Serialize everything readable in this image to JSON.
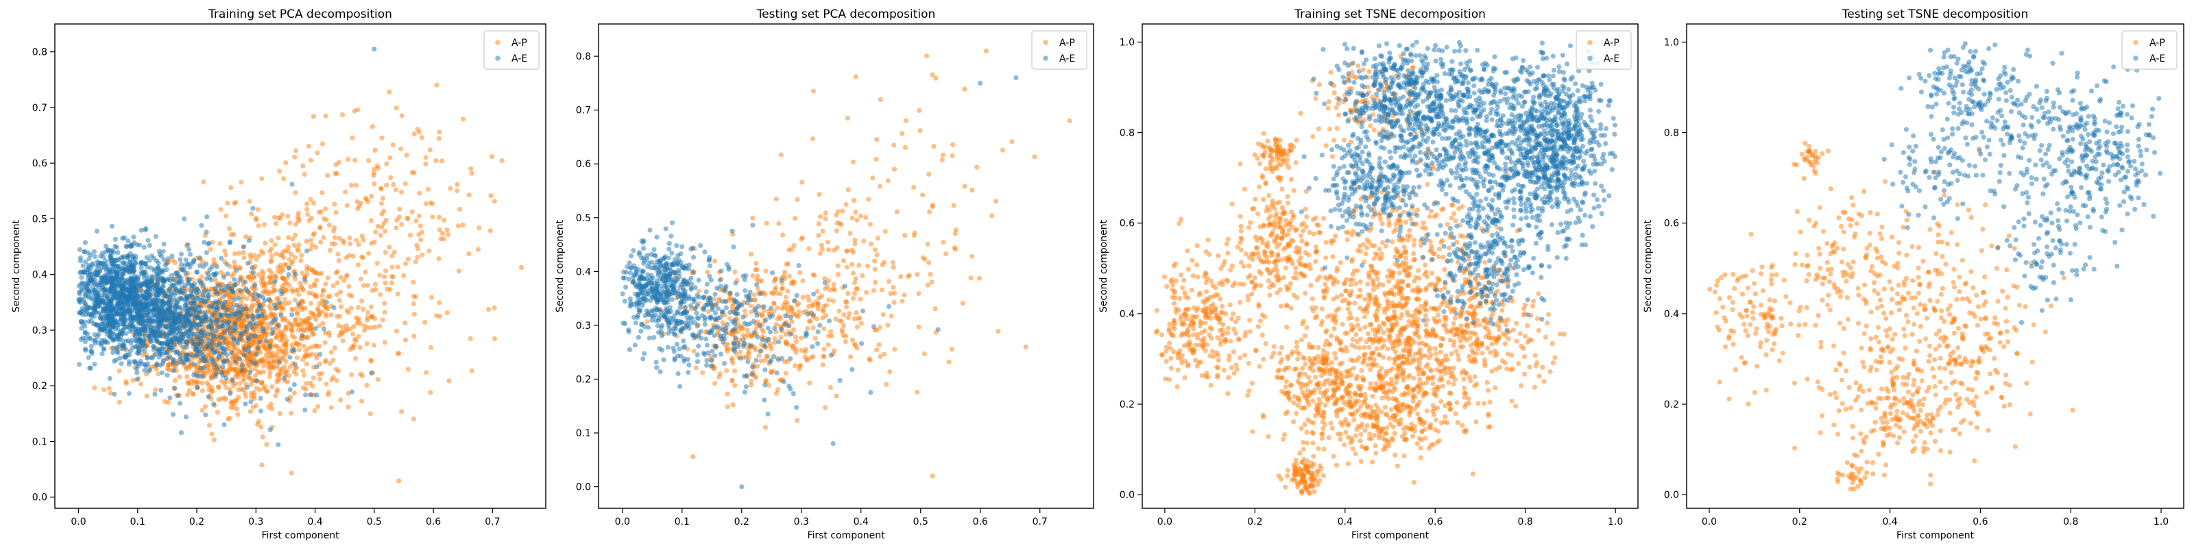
{
  "figure": {
    "colors": {
      "A-P": "#ff7f0e",
      "A-E": "#1f77b4"
    },
    "marker_alpha": 0.5
  },
  "chart_data": [
    {
      "type": "scatter",
      "title": "Training set PCA decomposition",
      "xlabel": "First component",
      "ylabel": "Second component",
      "xlim": [
        -0.04,
        0.79
      ],
      "ylim": [
        -0.02,
        0.85
      ],
      "xticks": [
        0.0,
        0.1,
        0.2,
        0.3,
        0.4,
        0.5,
        0.6,
        0.7
      ],
      "yticks": [
        0.0,
        0.1,
        0.2,
        0.3,
        0.4,
        0.5,
        0.6,
        0.7,
        0.8
      ],
      "tick_decimals": 1,
      "grid": false,
      "legend": {
        "position": "upper-right",
        "entries": [
          "A-P",
          "A-E"
        ]
      },
      "series": [
        {
          "name": "A-P",
          "color": "#ff7f0e",
          "n": 1800,
          "seed": 11,
          "clusters": [
            {
              "w": 0.55,
              "cx": 0.25,
              "cy": 0.29,
              "sx": 0.07,
              "sy": 0.06
            },
            {
              "w": 0.3,
              "cx": 0.36,
              "cy": 0.34,
              "sx": 0.09,
              "sy": 0.1
            },
            {
              "w": 0.15,
              "cx": 0.5,
              "cy": 0.48,
              "sx": 0.1,
              "sy": 0.13
            }
          ],
          "bounds": {
            "x": [
              0.0,
              0.75
            ],
            "y": [
              0.02,
              0.78
            ]
          }
        },
        {
          "name": "A-E",
          "color": "#1f77b4",
          "n": 2000,
          "seed": 23,
          "clusters": [
            {
              "w": 0.5,
              "cx": 0.07,
              "cy": 0.36,
              "sx": 0.045,
              "sy": 0.045
            },
            {
              "w": 0.4,
              "cx": 0.15,
              "cy": 0.32,
              "sx": 0.06,
              "sy": 0.05
            },
            {
              "w": 0.1,
              "cx": 0.26,
              "cy": 0.3,
              "sx": 0.08,
              "sy": 0.08
            }
          ],
          "bounds": {
            "x": [
              0.0,
              0.5
            ],
            "y": [
              0.08,
              0.81
            ]
          },
          "extra_points": [
            [
              0.5,
              0.805
            ]
          ]
        }
      ]
    },
    {
      "type": "scatter",
      "title": "Testing set PCA decomposition",
      "xlabel": "First component",
      "ylabel": "Second component",
      "xlim": [
        -0.04,
        0.79
      ],
      "ylim": [
        -0.04,
        0.86
      ],
      "xticks": [
        0.0,
        0.1,
        0.2,
        0.3,
        0.4,
        0.5,
        0.6,
        0.7
      ],
      "yticks": [
        0.0,
        0.1,
        0.2,
        0.3,
        0.4,
        0.5,
        0.6,
        0.7,
        0.8
      ],
      "tick_decimals": 1,
      "grid": false,
      "legend": {
        "position": "upper-right",
        "entries": [
          "A-P",
          "A-E"
        ]
      },
      "series": [
        {
          "name": "A-P",
          "color": "#ff7f0e",
          "n": 600,
          "seed": 31,
          "clusters": [
            {
              "w": 0.55,
              "cx": 0.23,
              "cy": 0.3,
              "sx": 0.07,
              "sy": 0.06
            },
            {
              "w": 0.3,
              "cx": 0.34,
              "cy": 0.36,
              "sx": 0.09,
              "sy": 0.1
            },
            {
              "w": 0.15,
              "cx": 0.48,
              "cy": 0.48,
              "sx": 0.1,
              "sy": 0.12
            }
          ],
          "bounds": {
            "x": [
              0.02,
              0.75
            ],
            "y": [
              0.02,
              0.82
            ]
          },
          "extra_points": [
            [
              0.61,
              0.81
            ],
            [
              0.75,
              0.68
            ],
            [
              0.52,
              0.02
            ]
          ]
        },
        {
          "name": "A-E",
          "color": "#1f77b4",
          "n": 700,
          "seed": 47,
          "clusters": [
            {
              "w": 0.55,
              "cx": 0.06,
              "cy": 0.37,
              "sx": 0.04,
              "sy": 0.04
            },
            {
              "w": 0.35,
              "cx": 0.14,
              "cy": 0.31,
              "sx": 0.06,
              "sy": 0.05
            },
            {
              "w": 0.1,
              "cx": 0.25,
              "cy": 0.28,
              "sx": 0.08,
              "sy": 0.08
            }
          ],
          "bounds": {
            "x": [
              0.0,
              0.67
            ],
            "y": [
              0.0,
              0.77
            ]
          },
          "extra_points": [
            [
              0.2,
              0.0
            ],
            [
              0.66,
              0.76
            ],
            [
              0.6,
              0.75
            ]
          ]
        }
      ]
    },
    {
      "type": "scatter",
      "title": "Training set TSNE decomposition",
      "xlabel": "First component",
      "ylabel": "Second component",
      "xlim": [
        -0.05,
        1.05
      ],
      "ylim": [
        -0.03,
        1.04
      ],
      "xticks": [
        0.0,
        0.2,
        0.4,
        0.6,
        0.8,
        1.0
      ],
      "yticks": [
        0.0,
        0.2,
        0.4,
        0.6,
        0.8,
        1.0
      ],
      "tick_decimals": 1,
      "grid": false,
      "legend": {
        "position": "upper-right",
        "entries": [
          "A-P",
          "A-E"
        ]
      },
      "series": [
        {
          "name": "A-P",
          "color": "#ff7f0e",
          "n": 2400,
          "seed": 59,
          "clusters": [
            {
              "w": 0.36,
              "cx": 0.52,
              "cy": 0.4,
              "sx": 0.1,
              "sy": 0.13
            },
            {
              "w": 0.14,
              "cx": 0.08,
              "cy": 0.38,
              "sx": 0.06,
              "sy": 0.08
            },
            {
              "w": 0.14,
              "cx": 0.48,
              "cy": 0.2,
              "sx": 0.09,
              "sy": 0.06
            },
            {
              "w": 0.1,
              "cx": 0.25,
              "cy": 0.55,
              "sx": 0.05,
              "sy": 0.07
            },
            {
              "w": 0.07,
              "cx": 0.32,
              "cy": 0.25,
              "sx": 0.05,
              "sy": 0.05
            },
            {
              "w": 0.04,
              "cx": 0.31,
              "cy": 0.04,
              "sx": 0.02,
              "sy": 0.02
            },
            {
              "w": 0.03,
              "cx": 0.25,
              "cy": 0.75,
              "sx": 0.02,
              "sy": 0.02
            },
            {
              "w": 0.08,
              "cx": 0.72,
              "cy": 0.35,
              "sx": 0.07,
              "sy": 0.07
            },
            {
              "w": 0.04,
              "cx": 0.45,
              "cy": 0.88,
              "sx": 0.06,
              "sy": 0.06
            }
          ],
          "bounds": {
            "x": [
              -0.02,
              0.93
            ],
            "y": [
              0.0,
              0.97
            ]
          }
        },
        {
          "name": "A-E",
          "color": "#1f77b4",
          "n": 2300,
          "seed": 71,
          "clusters": [
            {
              "w": 0.38,
              "cx": 0.72,
              "cy": 0.8,
              "sx": 0.13,
              "sy": 0.09
            },
            {
              "w": 0.22,
              "cx": 0.87,
              "cy": 0.76,
              "sx": 0.06,
              "sy": 0.09
            },
            {
              "w": 0.17,
              "cx": 0.53,
              "cy": 0.88,
              "sx": 0.07,
              "sy": 0.06
            },
            {
              "w": 0.13,
              "cx": 0.72,
              "cy": 0.52,
              "sx": 0.06,
              "sy": 0.07
            },
            {
              "w": 0.1,
              "cx": 0.45,
              "cy": 0.68,
              "sx": 0.05,
              "sy": 0.06
            }
          ],
          "bounds": {
            "x": [
              0.3,
              1.0
            ],
            "y": [
              0.35,
              1.0
            ]
          }
        }
      ]
    },
    {
      "type": "scatter",
      "title": "Testing set TSNE decomposition",
      "xlabel": "First component",
      "ylabel": "Second component",
      "xlim": [
        -0.05,
        1.05
      ],
      "ylim": [
        -0.03,
        1.04
      ],
      "xticks": [
        0.0,
        0.2,
        0.4,
        0.6,
        0.8,
        1.0
      ],
      "yticks": [
        0.0,
        0.2,
        0.4,
        0.6,
        0.8,
        1.0
      ],
      "tick_decimals": 1,
      "grid": false,
      "legend": {
        "position": "upper-right",
        "entries": [
          "A-P",
          "A-E"
        ]
      },
      "series": [
        {
          "name": "A-P",
          "color": "#ff7f0e",
          "n": 800,
          "seed": 83,
          "clusters": [
            {
              "w": 0.4,
              "cx": 0.45,
              "cy": 0.4,
              "sx": 0.11,
              "sy": 0.13
            },
            {
              "w": 0.15,
              "cx": 0.1,
              "cy": 0.4,
              "sx": 0.06,
              "sy": 0.07
            },
            {
              "w": 0.2,
              "cx": 0.45,
              "cy": 0.18,
              "sx": 0.09,
              "sy": 0.06
            },
            {
              "w": 0.1,
              "cx": 0.3,
              "cy": 0.55,
              "sx": 0.06,
              "sy": 0.06
            },
            {
              "w": 0.08,
              "cx": 0.62,
              "cy": 0.35,
              "sx": 0.06,
              "sy": 0.06
            },
            {
              "w": 0.04,
              "cx": 0.32,
              "cy": 0.04,
              "sx": 0.02,
              "sy": 0.02
            },
            {
              "w": 0.03,
              "cx": 0.23,
              "cy": 0.74,
              "sx": 0.02,
              "sy": 0.02
            }
          ],
          "bounds": {
            "x": [
              0.0,
              0.93
            ],
            "y": [
              0.0,
              0.93
            ]
          }
        },
        {
          "name": "A-E",
          "color": "#1f77b4",
          "n": 700,
          "seed": 97,
          "clusters": [
            {
              "w": 0.38,
              "cx": 0.72,
              "cy": 0.8,
              "sx": 0.13,
              "sy": 0.09
            },
            {
              "w": 0.22,
              "cx": 0.88,
              "cy": 0.76,
              "sx": 0.06,
              "sy": 0.07
            },
            {
              "w": 0.17,
              "cx": 0.57,
              "cy": 0.9,
              "sx": 0.06,
              "sy": 0.05
            },
            {
              "w": 0.13,
              "cx": 0.76,
              "cy": 0.55,
              "sx": 0.06,
              "sy": 0.08
            },
            {
              "w": 0.1,
              "cx": 0.48,
              "cy": 0.7,
              "sx": 0.05,
              "sy": 0.05
            }
          ],
          "bounds": {
            "x": [
              0.3,
              1.0
            ],
            "y": [
              0.35,
              1.0
            ]
          }
        }
      ]
    }
  ]
}
